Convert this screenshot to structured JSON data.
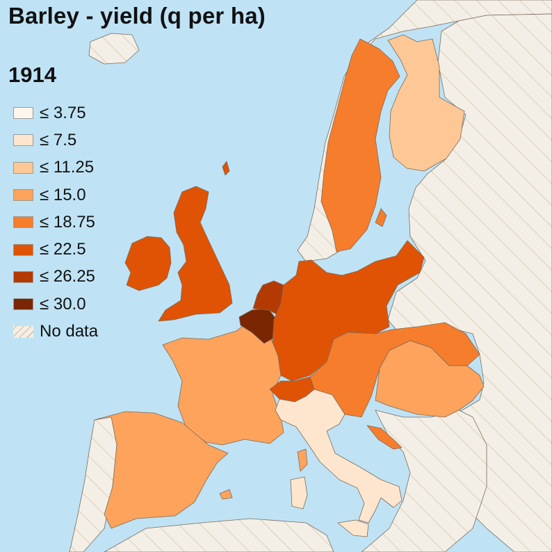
{
  "title": "Barley - yield (q per ha)",
  "year": "1914",
  "legend": [
    {
      "label": "≤ 3.75",
      "color": "#fff5eb"
    },
    {
      "label": "≤ 7.5",
      "color": "#fee6ce"
    },
    {
      "label": "≤ 11.25",
      "color": "#fdc896"
    },
    {
      "label": "≤ 15.0",
      "color": "#fda35c"
    },
    {
      "label": "≤ 18.75",
      "color": "#f67d2c"
    },
    {
      "label": "≤ 22.5",
      "color": "#e05305"
    },
    {
      "label": "≤ 26.25",
      "color": "#b43a03"
    },
    {
      "label": "≤ 30.0",
      "color": "#7a2602"
    },
    {
      "label": "No data",
      "color": "#f3efe7"
    }
  ],
  "colors": {
    "sea": "#bfe3f5",
    "no_data": "#f3efe7",
    "hatch": "#d9c6a8"
  },
  "regions": [
    {
      "name": "United Kingdom",
      "class": "≤ 22.5"
    },
    {
      "name": "Ireland",
      "class": "≤ 22.5"
    },
    {
      "name": "France",
      "class": "≤ 15.0"
    },
    {
      "name": "Spain",
      "class": "≤ 15.0"
    },
    {
      "name": "Portugal",
      "class": "No data"
    },
    {
      "name": "Belgium",
      "class": "≤ 30.0"
    },
    {
      "name": "Netherlands",
      "class": "≤ 26.25"
    },
    {
      "name": "Germany",
      "class": "≤ 22.5"
    },
    {
      "name": "Switzerland",
      "class": "≤ 22.5"
    },
    {
      "name": "Italy",
      "class": "≤ 7.5"
    },
    {
      "name": "Austria",
      "class": "≤ 18.75"
    },
    {
      "name": "Hungary",
      "class": "≤ 15.0"
    },
    {
      "name": "Sweden",
      "class": "≤ 18.75"
    },
    {
      "name": "Finland",
      "class": "≤ 11.25"
    },
    {
      "name": "Norway",
      "class": "No data"
    },
    {
      "name": "Russia",
      "class": "No data"
    },
    {
      "name": "Balkans",
      "class": "No data"
    }
  ]
}
